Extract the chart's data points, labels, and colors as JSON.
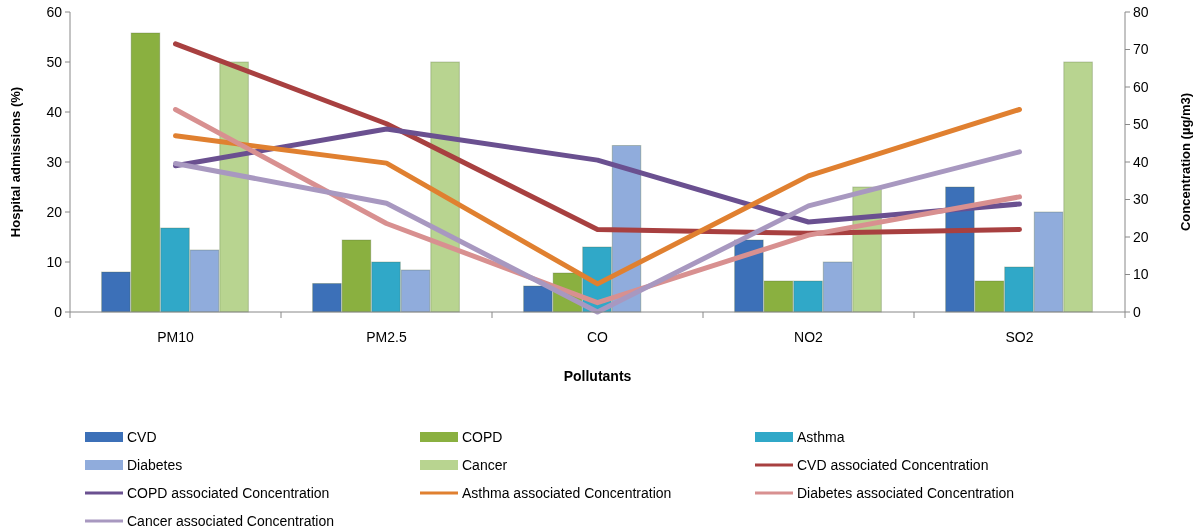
{
  "chart_data": {
    "type": "bar",
    "xlabel": "Pollutants",
    "ylabel": "Hospital admissions (%)",
    "y2label": "Concentration (µg/m3)",
    "categories": [
      "PM10",
      "PM2.5",
      "CO",
      "NO2",
      "SO2"
    ],
    "ylim": [
      0,
      60
    ],
    "yticks": [
      0,
      10,
      20,
      30,
      40,
      50,
      60
    ],
    "y2lim": [
      0,
      80
    ],
    "y2ticks": [
      0,
      10,
      20,
      30,
      40,
      50,
      60,
      70,
      80
    ],
    "grid": false,
    "legend": "bottom",
    "series": [
      {
        "name": "CVD",
        "color": "#3c70b8",
        "values": [
          8,
          5.7,
          5.2,
          14.4,
          25
        ]
      },
      {
        "name": "COPD",
        "color": "#8ab040",
        "values": [
          55.8,
          14.4,
          7.8,
          6.2,
          6.2
        ]
      },
      {
        "name": "Asthma",
        "color": "#30a8c8",
        "values": [
          16.8,
          10,
          13,
          6.2,
          9
        ]
      },
      {
        "name": "Diabetes",
        "color": "#90acdc",
        "values": [
          12.4,
          8.4,
          33.3,
          10,
          20
        ]
      },
      {
        "name": "Cancer",
        "color": "#b8d490",
        "values": [
          50,
          50,
          0,
          25,
          50
        ]
      },
      {
        "name": "CVD associated  Concentration",
        "type": "line",
        "axis": "y2",
        "color": "#a84040",
        "values": [
          71.5,
          50.2,
          22,
          21,
          22
        ]
      },
      {
        "name": "COPD associated  Concentration",
        "type": "line",
        "axis": "y2",
        "color": "#6a5090",
        "values": [
          39,
          48.8,
          40.5,
          24,
          28.8
        ]
      },
      {
        "name": "Asthma associated  Concentration",
        "type": "line",
        "axis": "y2",
        "color": "#e08030",
        "values": [
          47,
          39.7,
          7.5,
          36.3,
          54
        ]
      },
      {
        "name": "Diabetes associated  Concentration",
        "type": "line",
        "axis": "y2",
        "color": "#d89090",
        "values": [
          54,
          23.6,
          2.5,
          20.5,
          30.7
        ]
      },
      {
        "name": "Cancer associated  Concentration",
        "type": "line",
        "axis": "y2",
        "color": "#a898c0",
        "values": [
          39.6,
          29,
          0,
          28.3,
          42.7
        ]
      }
    ]
  }
}
